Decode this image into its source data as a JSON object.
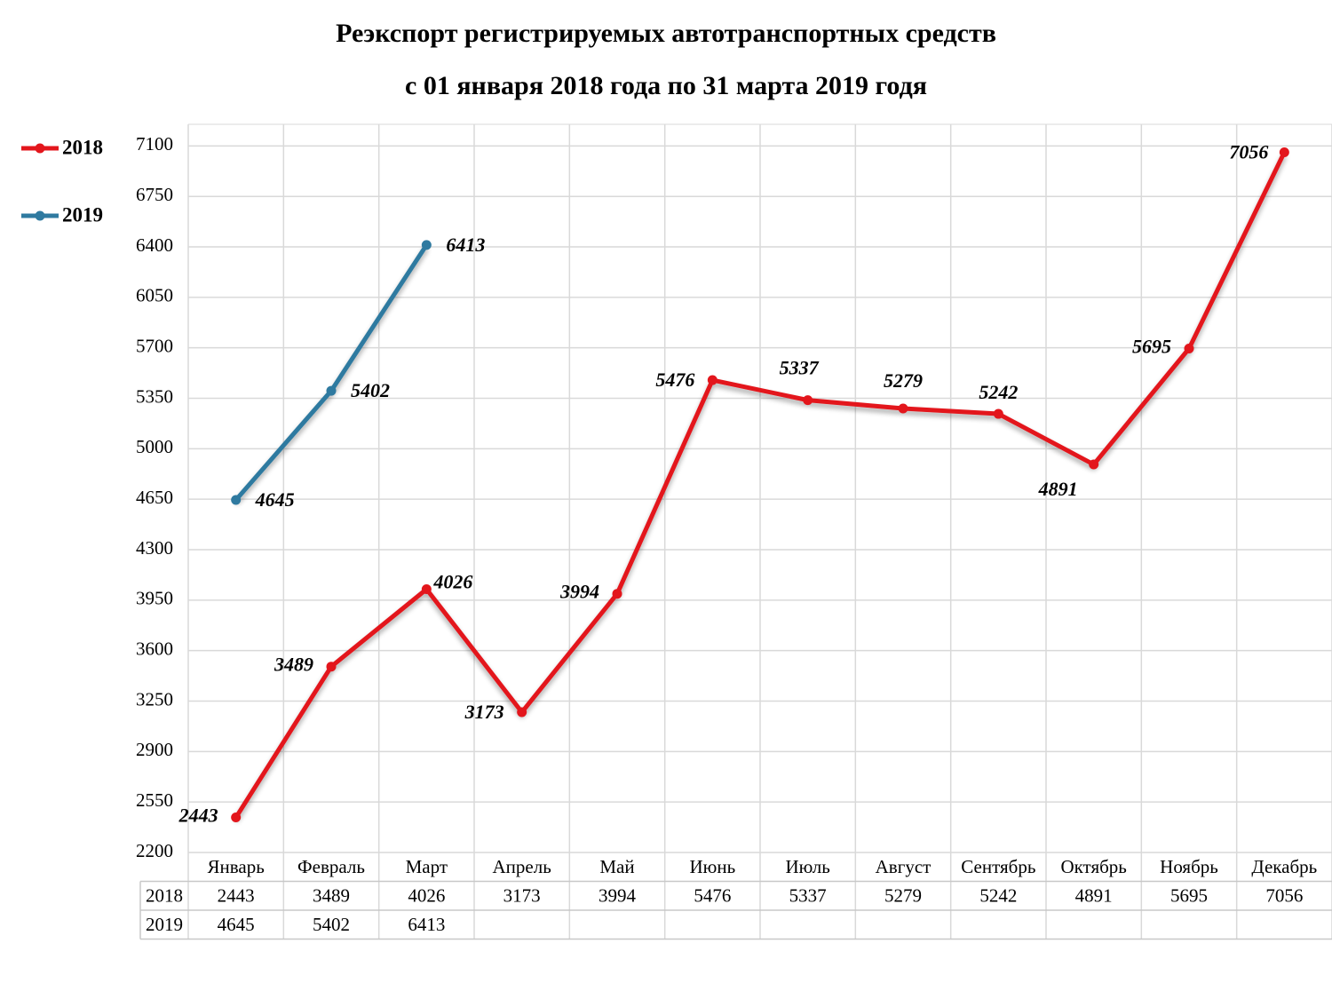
{
  "chart_data": {
    "type": "line",
    "title": "Реэкспорт регистрируемых автотранспортных средств",
    "subtitle": "с 01 января 2018 года по 31 марта 2019 годя",
    "categories": [
      "Январь",
      "Февраль",
      "Март",
      "Апрель",
      "Май",
      "Июнь",
      "Июль",
      "Август",
      "Сентябрь",
      "Октябрь",
      "Ноябрь",
      "Декабрь"
    ],
    "series": [
      {
        "name": "2018",
        "color": "#e3161c",
        "values": [
          2443,
          3489,
          4026,
          3173,
          3994,
          5476,
          5337,
          5279,
          5242,
          4891,
          5695,
          7056
        ]
      },
      {
        "name": "2019",
        "color": "#2f7aa0",
        "values": [
          4645,
          5402,
          6413,
          null,
          null,
          null,
          null,
          null,
          null,
          null,
          null,
          null
        ]
      }
    ],
    "ylim": [
      2200,
      7250
    ],
    "yticks": [
      2200,
      2550,
      2900,
      3250,
      3600,
      3950,
      4300,
      4650,
      5000,
      5350,
      5700,
      6050,
      6400,
      6750,
      7100
    ],
    "grid": true,
    "legend": "left"
  }
}
